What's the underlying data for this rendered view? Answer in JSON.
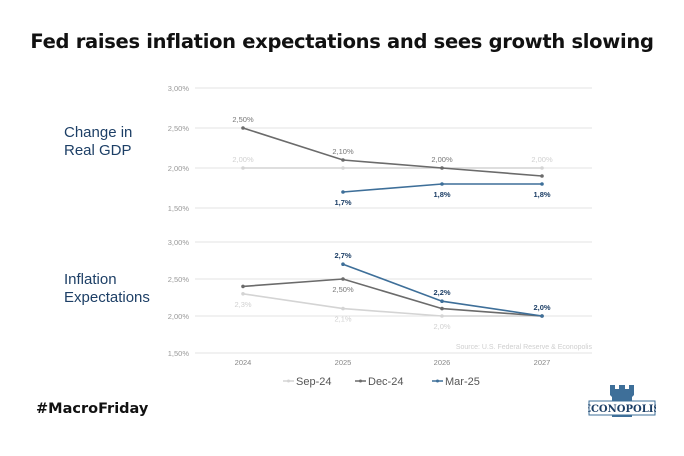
{
  "title": "Fed raises inflation expectations and sees growth slowing",
  "hashtag": "#MacroFriday",
  "logo": {
    "text": "ECONOPOLIS",
    "color": "#3e6f99"
  },
  "source": "Source: U.S. Federal Reserve & Econopolis",
  "legend": [
    {
      "name": "Sep-24",
      "color": "#d4d4d4"
    },
    {
      "name": "Dec-24",
      "color": "#6b6b6b"
    },
    {
      "name": "Mar-25",
      "color": "#3e6f99"
    }
  ],
  "chart_data": [
    {
      "type": "line",
      "title": "Change in Real GDP",
      "panel_label_lines": [
        "Change in",
        "Real GDP"
      ],
      "categories": [
        "2024",
        "2025",
        "2026",
        "2027"
      ],
      "ylim": [
        1.5,
        3.0
      ],
      "yticks": [
        {
          "v": 3.0,
          "label": "3,00%"
        },
        {
          "v": 2.5,
          "label": "2,50%"
        },
        {
          "v": 2.0,
          "label": "2,00%"
        },
        {
          "v": 1.5,
          "label": "1,50%"
        }
      ],
      "grid": true,
      "series": [
        {
          "name": "Sep-24",
          "color": "#d4d4d4",
          "values": [
            2.0,
            2.0,
            2.0,
            2.0
          ],
          "labels": [
            "2,00%",
            null,
            null,
            "2,00%"
          ],
          "label_pos": "above",
          "bold": false
        },
        {
          "name": "Dec-24",
          "color": "#6b6b6b",
          "values": [
            2.5,
            2.1,
            2.0,
            1.9
          ],
          "labels": [
            "2,50%",
            "2,10%",
            "2,00%",
            null
          ],
          "label_pos": "above",
          "bold": false
        },
        {
          "name": "Mar-25",
          "color": "#3e6f99",
          "values": [
            null,
            1.7,
            1.8,
            1.8
          ],
          "labels": [
            null,
            "1,7%",
            "1,8%",
            "1,8%"
          ],
          "label_pos": "below",
          "bold": true
        }
      ]
    },
    {
      "type": "line",
      "title": "Inflation Expectations",
      "panel_label_lines": [
        "Inflation",
        "Expectations"
      ],
      "categories": [
        "2024",
        "2025",
        "2026",
        "2027"
      ],
      "ylim": [
        1.5,
        3.0
      ],
      "yticks": [
        {
          "v": 3.0,
          "label": "3,00%"
        },
        {
          "v": 2.5,
          "label": "2,50%"
        },
        {
          "v": 2.0,
          "label": "2,00%"
        },
        {
          "v": 1.5,
          "label": "1,50%"
        }
      ],
      "grid": true,
      "xlabels": [
        "2024",
        "2025",
        "2026",
        "2027"
      ],
      "series": [
        {
          "name": "Sep-24",
          "color": "#d4d4d4",
          "values": [
            2.3,
            2.1,
            2.0,
            2.0
          ],
          "labels": [
            "2,3%",
            "2,1%",
            "2,0%",
            null
          ],
          "label_pos": "below",
          "bold": false
        },
        {
          "name": "Dec-24",
          "color": "#6b6b6b",
          "values": [
            2.4,
            2.5,
            2.1,
            2.0
          ],
          "labels": [
            null,
            "2,50%",
            null,
            null
          ],
          "label_pos": "below",
          "bold": false
        },
        {
          "name": "Mar-25",
          "color": "#3e6f99",
          "values": [
            null,
            2.7,
            2.2,
            2.0
          ],
          "labels": [
            null,
            "2,7%",
            "2,2%",
            "2,0%"
          ],
          "label_pos": "above",
          "bold": true
        }
      ]
    }
  ]
}
